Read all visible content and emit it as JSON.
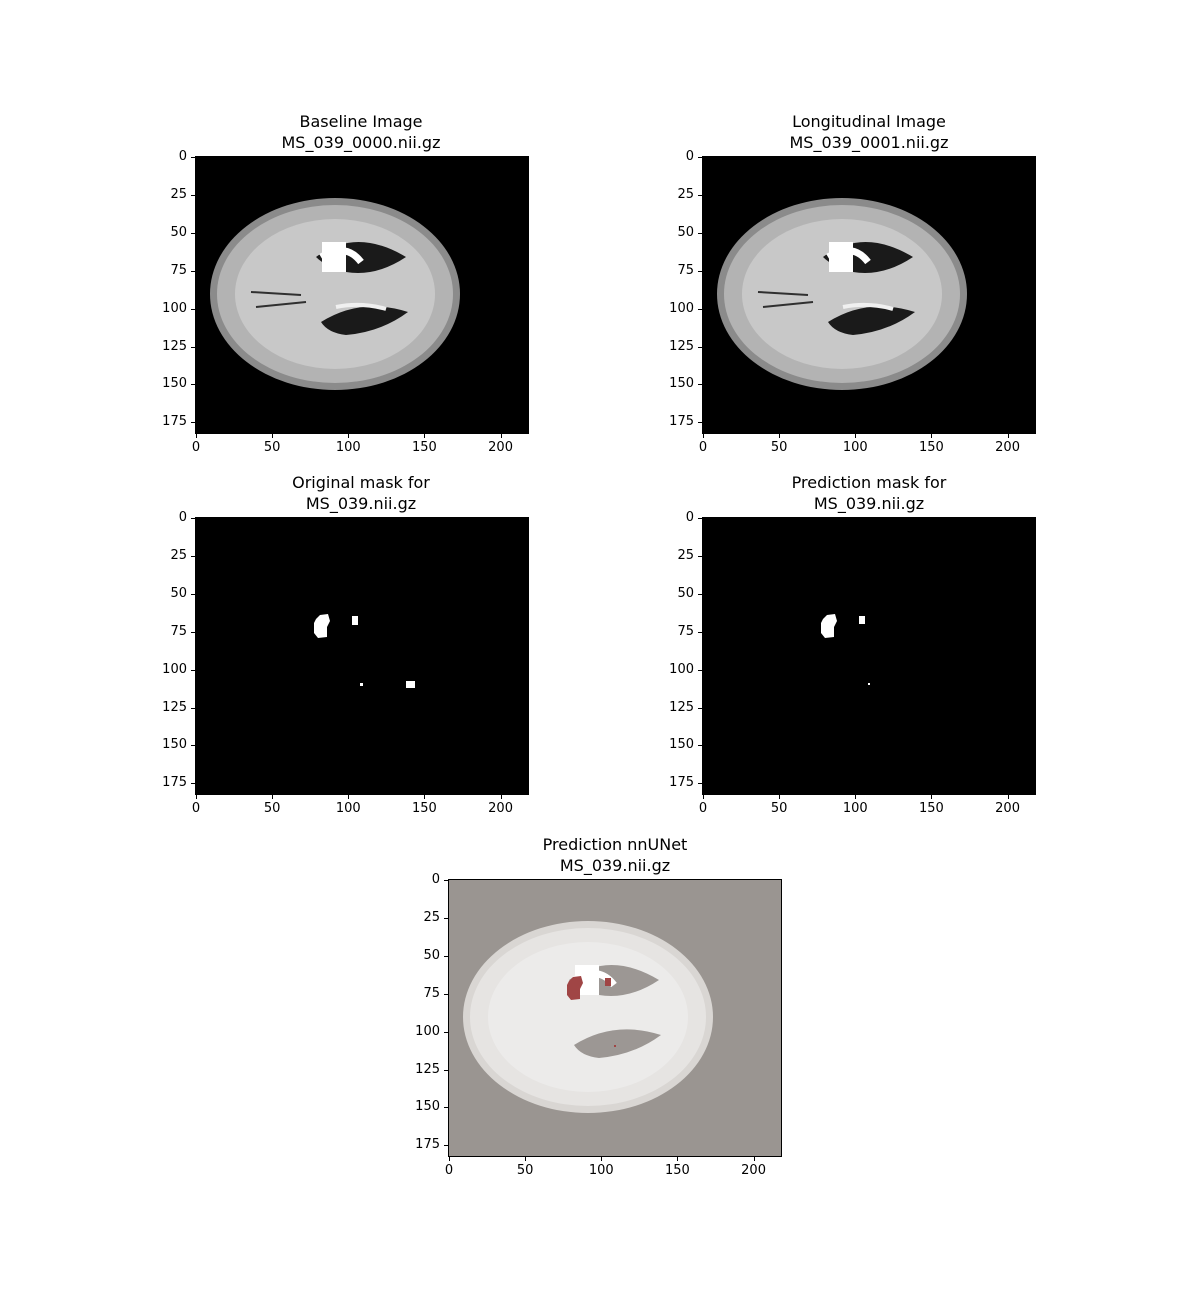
{
  "figure": {
    "panels": [
      {
        "id": "baseline",
        "kind": "mri",
        "title_line1": "Baseline Image",
        "title_line2": "MS_039_0000.nii.gz",
        "x_ticks": [
          "0",
          "50",
          "100",
          "150",
          "200"
        ],
        "y_ticks": [
          "0",
          "25",
          "50",
          "75",
          "100",
          "125",
          "150",
          "175"
        ]
      },
      {
        "id": "longitudinal",
        "kind": "mri",
        "title_line1": "Longitudinal Image",
        "title_line2": "MS_039_0001.nii.gz",
        "x_ticks": [
          "0",
          "50",
          "100",
          "150",
          "200"
        ],
        "y_ticks": [
          "0",
          "25",
          "50",
          "75",
          "100",
          "125",
          "150",
          "175"
        ]
      },
      {
        "id": "original-mask",
        "kind": "mask-original",
        "title_line1": "Original mask for",
        "title_line2": "MS_039.nii.gz",
        "x_ticks": [
          "0",
          "50",
          "100",
          "150",
          "200"
        ],
        "y_ticks": [
          "0",
          "25",
          "50",
          "75",
          "100",
          "125",
          "150",
          "175"
        ]
      },
      {
        "id": "prediction-mask",
        "kind": "mask-prediction",
        "title_line1": "Prediction mask for",
        "title_line2": "MS_039.nii.gz",
        "x_ticks": [
          "0",
          "50",
          "100",
          "150",
          "200"
        ],
        "y_ticks": [
          "0",
          "25",
          "50",
          "75",
          "100",
          "125",
          "150",
          "175"
        ]
      },
      {
        "id": "prediction-nnunet",
        "kind": "overlay",
        "title_line1": "Prediction nnUNet",
        "title_line2": "MS_039.nii.gz",
        "x_ticks": [
          "0",
          "50",
          "100",
          "150",
          "200"
        ],
        "y_ticks": [
          "0",
          "25",
          "50",
          "75",
          "100",
          "125",
          "150",
          "175"
        ]
      }
    ],
    "colors": {
      "background_black": "#000000",
      "overlay_gray": "#9a9591",
      "lesion_red": "#a04545",
      "mask_white": "#ffffff"
    }
  }
}
